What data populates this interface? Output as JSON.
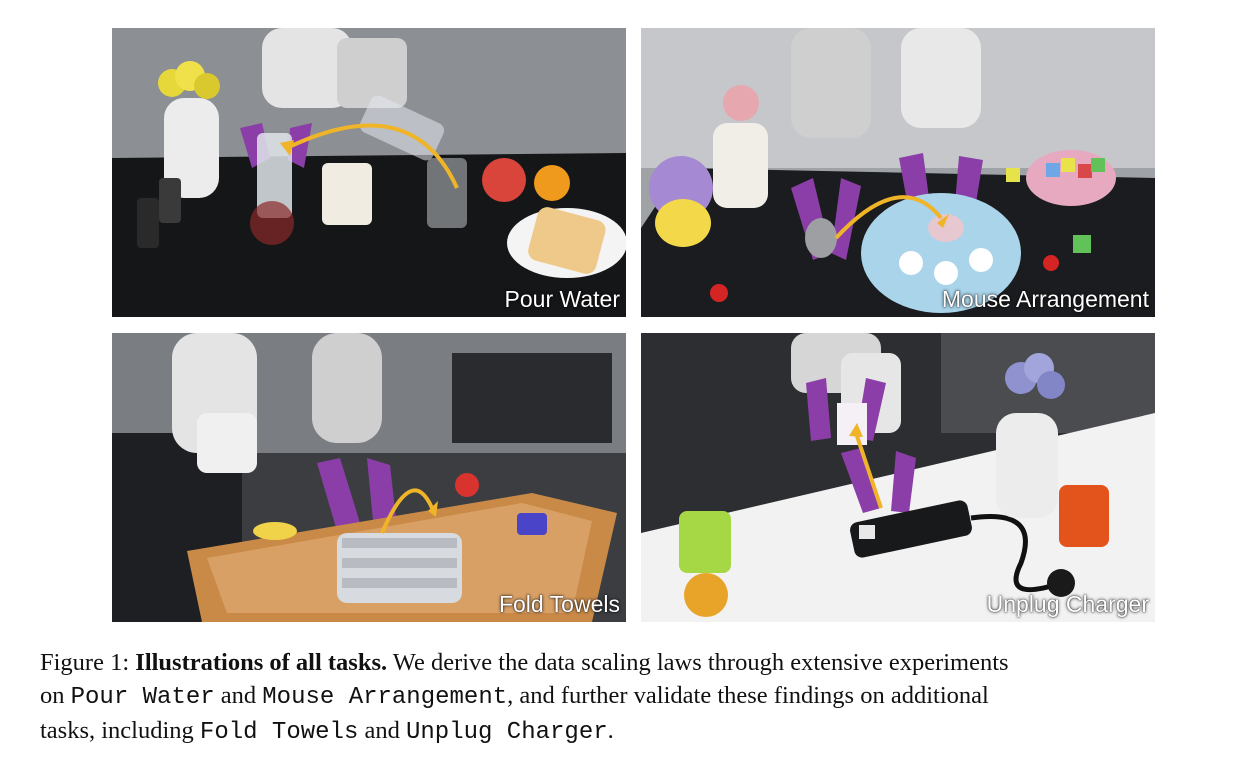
{
  "figure": {
    "panels": [
      {
        "label": "Pour Water"
      },
      {
        "label": "Mouse Arrangement"
      },
      {
        "label": "Fold Towels"
      },
      {
        "label": "Unplug Charger"
      }
    ],
    "caption": {
      "prefix": "Figure 1: ",
      "title": "Illustrations of all tasks.",
      "line1_text": " We derive the data scaling laws through extensive experiments",
      "line2_on": "on ",
      "task1": "Pour Water",
      "and1": " and ",
      "task2": "Mouse Arrangement",
      "line2_rest": ", and further validate these findings on additional",
      "line3_start": "tasks, including ",
      "task3": "Fold Towels",
      "and2": " and ",
      "task4": "Unplug Charger",
      "end": "."
    }
  }
}
